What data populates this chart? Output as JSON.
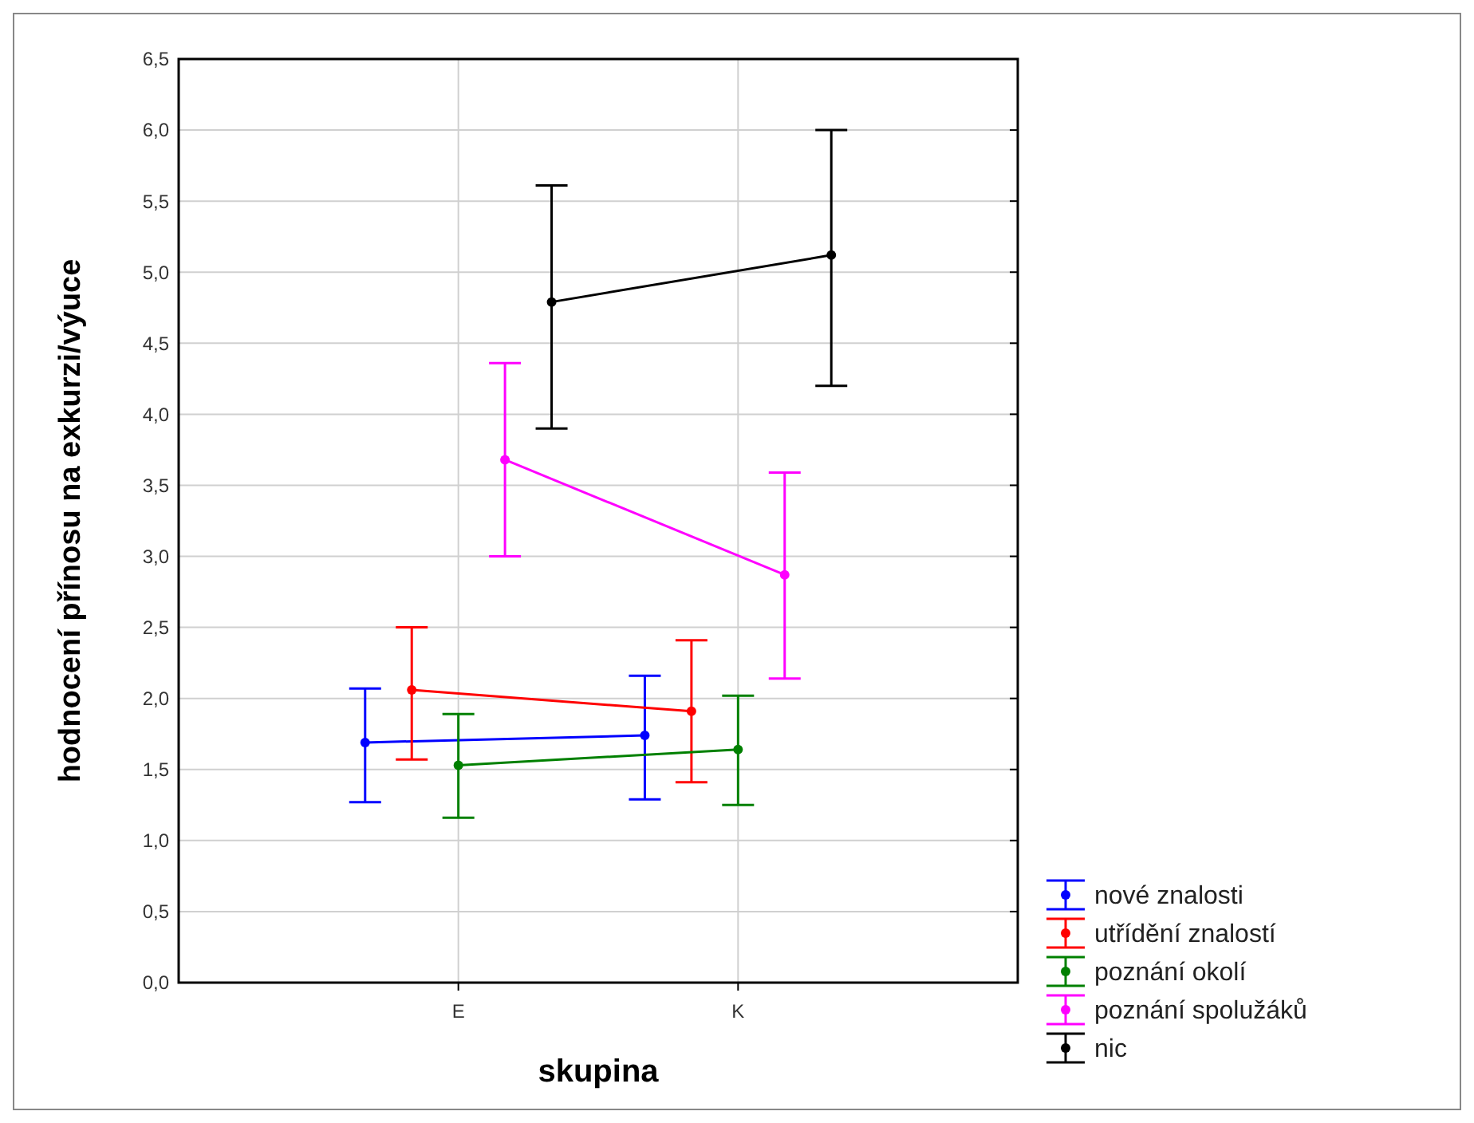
{
  "chart_data": {
    "type": "line",
    "xlabel": "skupina",
    "ylabel": "hodnocení přínosu na exkurzi/výuce",
    "categories": [
      null,
      null,
      null,
      null,
      null,
      null,
      "E",
      null,
      null,
      null,
      null,
      null,
      "K",
      null,
      null,
      null,
      null,
      null,
      null
    ],
    "ylim": [
      0,
      6.5
    ],
    "yticks": [
      {
        "value": 0,
        "label": "0,0"
      },
      {
        "value": 0.5,
        "label": "0,5"
      },
      {
        "value": 1,
        "label": "1,0"
      },
      {
        "value": 1.5,
        "label": "1,5"
      },
      {
        "value": 2,
        "label": "2,0"
      },
      {
        "value": 2.5,
        "label": "2,5"
      },
      {
        "value": 3,
        "label": "3,0"
      },
      {
        "value": 3.5,
        "label": "3,5"
      },
      {
        "value": 4,
        "label": "4,0"
      },
      {
        "value": 4.5,
        "label": "4,5"
      },
      {
        "value": 5,
        "label": "5,0"
      },
      {
        "value": 5.5,
        "label": "5,5"
      },
      {
        "value": 6,
        "label": "6,0"
      },
      {
        "value": 6.5,
        "label": "6,5"
      }
    ],
    "grid": true,
    "legend": "bottom right",
    "marker": "circle",
    "line_style": "solid",
    "series": [
      {
        "name": "nové znalosti",
        "color": "#0000ff",
        "values": [
          null,
          null,
          null,
          null,
          1.69,
          null,
          null,
          null,
          null,
          null,
          1.74,
          null,
          null,
          null,
          null,
          null,
          null,
          null,
          null
        ],
        "errors": [
          null,
          null,
          null,
          null,
          [
            1.27,
            2.07
          ],
          null,
          null,
          null,
          null,
          null,
          [
            1.29,
            2.16
          ],
          null,
          null,
          null,
          null,
          null,
          null,
          null,
          null
        ]
      },
      {
        "name": "utřídění znalostí",
        "color": "#ff0000",
        "values": [
          null,
          null,
          null,
          null,
          null,
          2.06,
          null,
          null,
          null,
          null,
          null,
          1.91,
          null,
          null,
          null,
          null,
          null,
          null,
          null
        ],
        "errors": [
          null,
          null,
          null,
          null,
          null,
          [
            1.57,
            2.5
          ],
          null,
          null,
          null,
          null,
          null,
          [
            1.41,
            2.41
          ],
          null,
          null,
          null,
          null,
          null,
          null,
          null
        ]
      },
      {
        "name": "poznání okolí",
        "color": "#008000",
        "values": [
          null,
          null,
          null,
          null,
          null,
          null,
          1.53,
          null,
          null,
          null,
          null,
          null,
          1.64,
          null,
          null,
          null,
          null,
          null,
          null
        ],
        "errors": [
          null,
          null,
          null,
          null,
          null,
          null,
          [
            1.16,
            1.89
          ],
          null,
          null,
          null,
          null,
          null,
          [
            1.25,
            2.02
          ],
          null,
          null,
          null,
          null,
          null,
          null
        ]
      },
      {
        "name": "poznání spolužáků",
        "color": "#ff00ff",
        "values": [
          null,
          null,
          null,
          null,
          null,
          null,
          null,
          3.68,
          null,
          null,
          null,
          null,
          null,
          2.87,
          null,
          null,
          null,
          null,
          null
        ],
        "errors": [
          null,
          null,
          null,
          null,
          null,
          null,
          null,
          [
            3.0,
            4.36
          ],
          null,
          null,
          null,
          null,
          null,
          [
            2.14,
            3.59
          ],
          null,
          null,
          null,
          null,
          null
        ]
      },
      {
        "name": "nic",
        "color": "#000000",
        "values": [
          null,
          null,
          null,
          null,
          null,
          null,
          null,
          null,
          4.79,
          null,
          null,
          null,
          null,
          null,
          5.12,
          null,
          null,
          null,
          null
        ],
        "errors": [
          null,
          null,
          null,
          null,
          null,
          null,
          null,
          null,
          [
            3.9,
            5.61
          ],
          null,
          null,
          null,
          null,
          null,
          [
            4.2,
            6.0
          ],
          null,
          null,
          null,
          null
        ]
      }
    ]
  }
}
